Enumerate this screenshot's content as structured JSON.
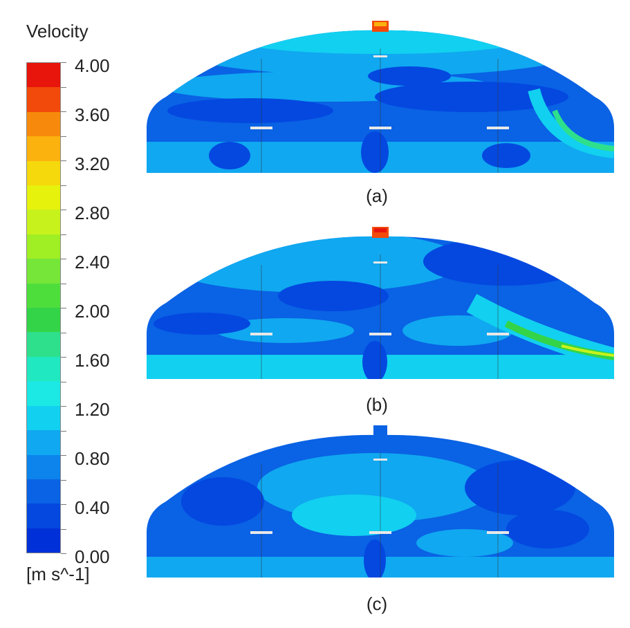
{
  "legend": {
    "title": "Velocity",
    "unit": "[m s^-1]",
    "ticks": [
      "4.00",
      "3.60",
      "3.20",
      "2.80",
      "2.40",
      "2.00",
      "1.60",
      "1.20",
      "0.80",
      "0.40",
      "0.00"
    ],
    "colors": [
      "#e8150c",
      "#f24a0a",
      "#f78a0c",
      "#fbb20e",
      "#f5d90c",
      "#e6f20c",
      "#c8f21c",
      "#a0ee24",
      "#76e638",
      "#4ede3c",
      "#34d448",
      "#2ee08c",
      "#20e8c0",
      "#1ce8e4",
      "#12d0f0",
      "#10a8f0",
      "#0c84ec",
      "#0a62e4",
      "#0448e0",
      "#0030d8"
    ]
  },
  "panels": [
    {
      "label": "(a)"
    },
    {
      "label": "(b)"
    },
    {
      "label": "(c)"
    }
  ]
}
